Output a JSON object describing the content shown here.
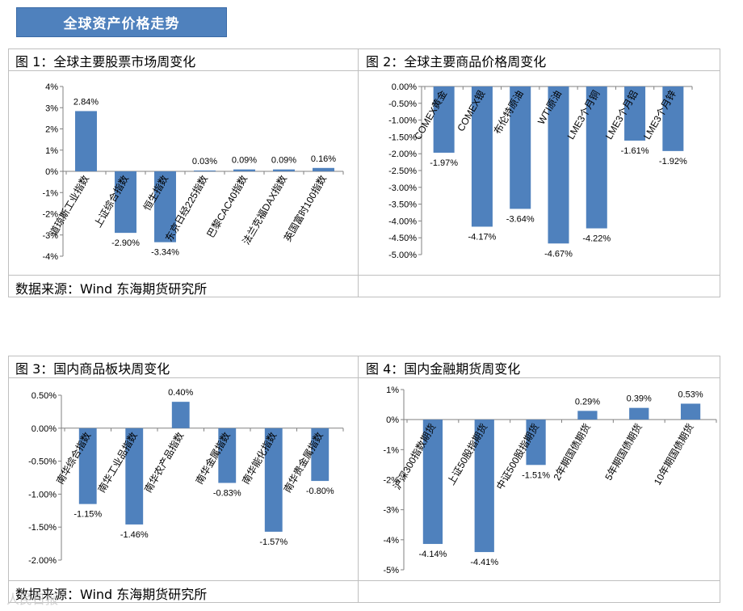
{
  "header": {
    "title": "全球资产价格走势"
  },
  "source": "数据来源：Wind   东海期货研究所",
  "watermark": "人民日报",
  "chart_data": [
    {
      "id": "fig1",
      "type": "bar",
      "title": "图 1：全球主要股票市场周变化",
      "categories": [
        "道琼斯工业指数",
        "上证综合指数",
        "恒生指数",
        "东京日经225指数",
        "巴黎CAC40指数",
        "法兰克福DAX指数",
        "英国富时100指数"
      ],
      "values": [
        2.84,
        -2.9,
        -3.34,
        0.03,
        0.09,
        0.09,
        0.16
      ],
      "labels": [
        "2.84%",
        "-2.90%",
        "-3.34%",
        "0.03%",
        "0.09%",
        "0.09%",
        "0.16%"
      ],
      "yticks": [
        "4%",
        "3%",
        "2%",
        "1%",
        "0%",
        "-1%",
        "-2%",
        "-3%",
        "-4%"
      ],
      "ylim": [
        -4,
        4
      ],
      "color": "#4f81bd"
    },
    {
      "id": "fig2",
      "type": "bar",
      "title": "图 2：全球主要商品价格周变化",
      "categories": [
        "COMEX黄金",
        "COMEX银",
        "布伦特原油",
        "WTI原油",
        "LME3个月铜",
        "LME3个月铝",
        "LME3个月锌"
      ],
      "values": [
        -1.97,
        -4.17,
        -3.64,
        -4.67,
        -4.22,
        -1.61,
        -1.92
      ],
      "labels": [
        "-1.97%",
        "-4.17%",
        "-3.64%",
        "-4.67%",
        "-4.22%",
        "-1.61%",
        "-1.92%"
      ],
      "yticks": [
        "0.00%",
        "-0.50%",
        "-1.00%",
        "-1.50%",
        "-2.00%",
        "-2.50%",
        "-3.00%",
        "-3.50%",
        "-4.00%",
        "-4.50%",
        "-5.00%"
      ],
      "ylim": [
        -5,
        0
      ],
      "color": "#4f81bd"
    },
    {
      "id": "fig3",
      "type": "bar",
      "title": "图 3：国内商品板块周变化",
      "categories": [
        "南华综合指数",
        "南华工业品指数",
        "南华农产品指数",
        "南华金属指数",
        "南华能化指数",
        "南华贵金属指数"
      ],
      "values": [
        -1.15,
        -1.46,
        0.4,
        -0.83,
        -1.57,
        -0.8
      ],
      "labels": [
        "-1.15%",
        "-1.46%",
        "0.40%",
        "-0.83%",
        "-1.57%",
        "-0.80%"
      ],
      "yticks": [
        "0.50%",
        "0.00%",
        "-0.50%",
        "-1.00%",
        "-1.50%",
        "-2.00%"
      ],
      "ylim": [
        -2,
        0.5
      ],
      "color": "#4f81bd"
    },
    {
      "id": "fig4",
      "type": "bar",
      "title": "图 4：国内金融期货周变化",
      "categories": [
        "沪深300指数期货",
        "上证50股指期货",
        "中证500股指期货",
        "2年期国债期货",
        "5年期国债期货",
        "10年期国债期货"
      ],
      "values": [
        -4.14,
        -4.41,
        -1.51,
        0.29,
        0.39,
        0.53
      ],
      "labels": [
        "-4.14%",
        "-4.41%",
        "-1.51%",
        "0.29%",
        "0.39%",
        "0.53%"
      ],
      "yticks": [
        "1%",
        "0%",
        "-1%",
        "-2%",
        "-3%",
        "-4%",
        "-5%"
      ],
      "ylim": [
        -5,
        1
      ],
      "color": "#4f81bd"
    }
  ]
}
